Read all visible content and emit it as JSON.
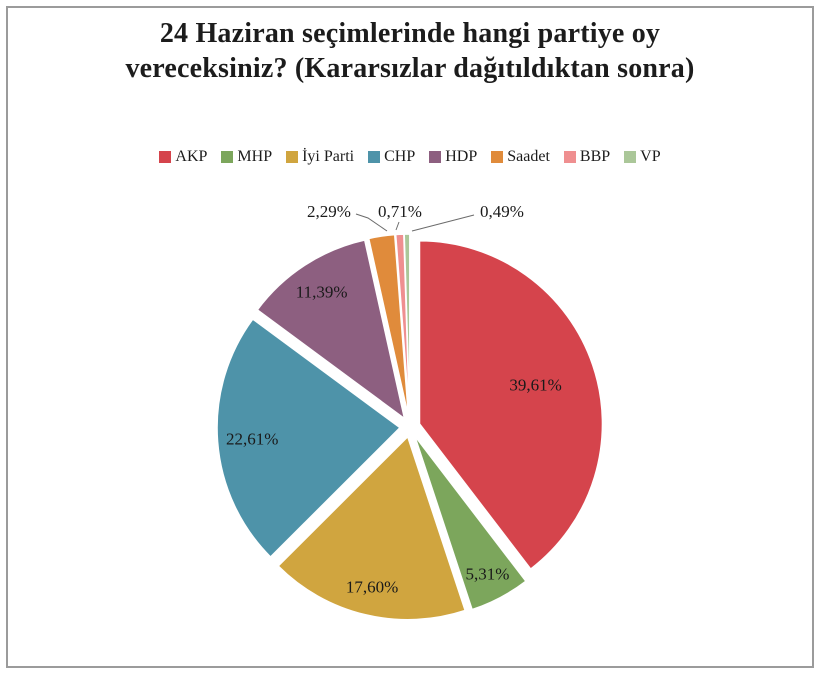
{
  "chart": {
    "title": "24 Haziran seçimlerinde hangi partiye oy vereceksiniz? (Kararsızlar dağıtıldıktan sonra)"
  },
  "chart_data": {
    "type": "pie",
    "title": "24 Haziran seçimlerinde hangi partiye oy vereceksiniz? (Kararsızlar dağıtıldıktan sonra)",
    "categories": [
      "AKP",
      "MHP",
      "İyi Parti",
      "CHP",
      "HDP",
      "Saadet",
      "BBP",
      "VP"
    ],
    "values": [
      39.61,
      5.31,
      17.6,
      22.61,
      11.39,
      2.29,
      0.71,
      0.49
    ],
    "value_labels": [
      "39,61%",
      "5,31%",
      "17,60%",
      "22,61%",
      "11,39%",
      "2,29%",
      "0,71%",
      "0,49%"
    ],
    "colors": [
      "#D5444C",
      "#7CA65C",
      "#D0A53F",
      "#4E93A9",
      "#8D5F80",
      "#E08B3B",
      "#EF8F90",
      "#ABC799"
    ],
    "legend_position": "top",
    "start_angle_deg": 0,
    "direction": "clockwise",
    "exploded": true,
    "text_color": "#1a1a1a"
  }
}
